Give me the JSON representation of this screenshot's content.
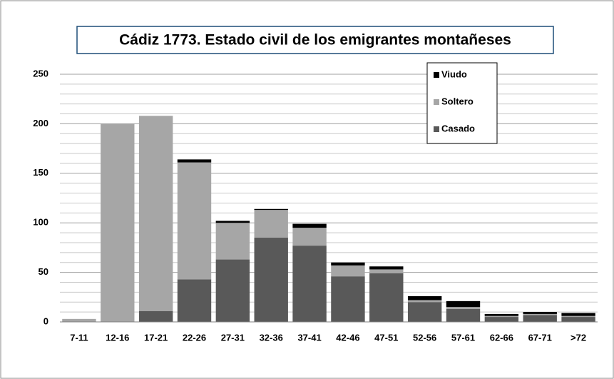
{
  "chart_data": {
    "type": "stacked_bar",
    "title": "Cádiz 1773. Estado civil de los emigrantes montañeses",
    "categories": [
      "7-11",
      "12-16",
      "17-21",
      "22-26",
      "27-31",
      "32-36",
      "37-41",
      "42-46",
      "47-51",
      "52-56",
      "57-61",
      "62-66",
      "67-71",
      ">72"
    ],
    "series": [
      {
        "name": "Casado",
        "color": "#595959",
        "values": [
          0,
          0,
          11,
          43,
          63,
          85,
          77,
          46,
          49,
          20,
          13,
          5,
          7,
          5
        ]
      },
      {
        "name": "Soltero",
        "color": "#a6a6a6",
        "values": [
          3,
          200,
          197,
          118,
          37,
          28,
          18,
          11,
          4,
          2,
          2,
          1,
          1,
          1
        ]
      },
      {
        "name": "Viudo",
        "color": "#000000",
        "values": [
          0,
          0,
          0,
          3,
          2,
          1,
          4,
          3,
          3,
          4,
          6,
          2,
          2,
          3
        ]
      }
    ],
    "ylim": [
      0,
      250
    ],
    "yticks": [
      0,
      50,
      100,
      150,
      200,
      250
    ],
    "minor_yticks": [
      10,
      20,
      30,
      40,
      60,
      70,
      80,
      90,
      110,
      120,
      130,
      140,
      160,
      170,
      180,
      190,
      210,
      220,
      230,
      240
    ],
    "grid": true,
    "legend": "top-right"
  }
}
